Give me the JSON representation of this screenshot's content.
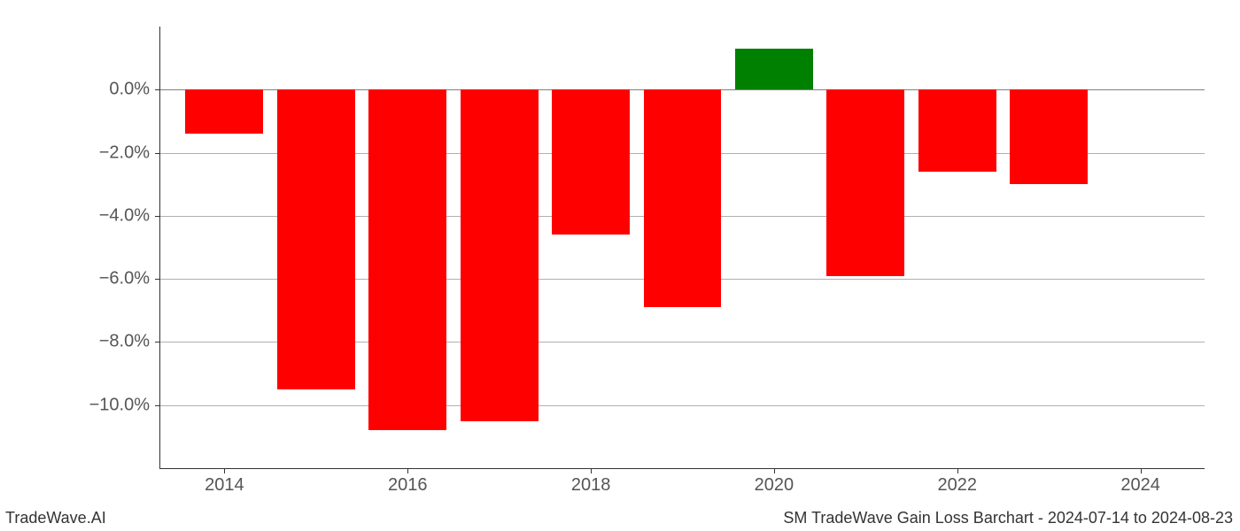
{
  "chart": {
    "type": "bar",
    "years": [
      2014,
      2015,
      2016,
      2017,
      2018,
      2019,
      2020,
      2021,
      2022,
      2023
    ],
    "values": [
      -1.4,
      -9.5,
      -10.8,
      -10.5,
      -4.6,
      -6.9,
      1.3,
      -5.9,
      -2.6,
      -3.0
    ],
    "colors": {
      "positive": "#008000",
      "negative": "#fe0000"
    },
    "x": {
      "min": 2013.3,
      "max": 2024.7,
      "ticks": [
        2014,
        2016,
        2018,
        2020,
        2022,
        2024
      ],
      "tick_labels": [
        "2014",
        "2016",
        "2018",
        "2020",
        "2022",
        "2024"
      ]
    },
    "y": {
      "min": -12.0,
      "max": 2.0,
      "ticks": [
        0,
        -2,
        -4,
        -6,
        -8,
        -10
      ],
      "tick_labels": [
        "0.0%",
        "−2.0%",
        "−4.0%",
        "−6.0%",
        "−8.0%",
        "−10.0%"
      ]
    },
    "bar_width_years": 0.85,
    "grid_color": "#b0b0b0",
    "zero_line_color": "#808080",
    "background_color": "#ffffff",
    "tick_label_fontsize": 20,
    "tick_label_color": "#555555"
  },
  "footer": {
    "left": "TradeWave.AI",
    "right": "SM TradeWave Gain Loss Barchart - 2024-07-14 to 2024-08-23",
    "fontsize": 18,
    "color": "#333333"
  }
}
